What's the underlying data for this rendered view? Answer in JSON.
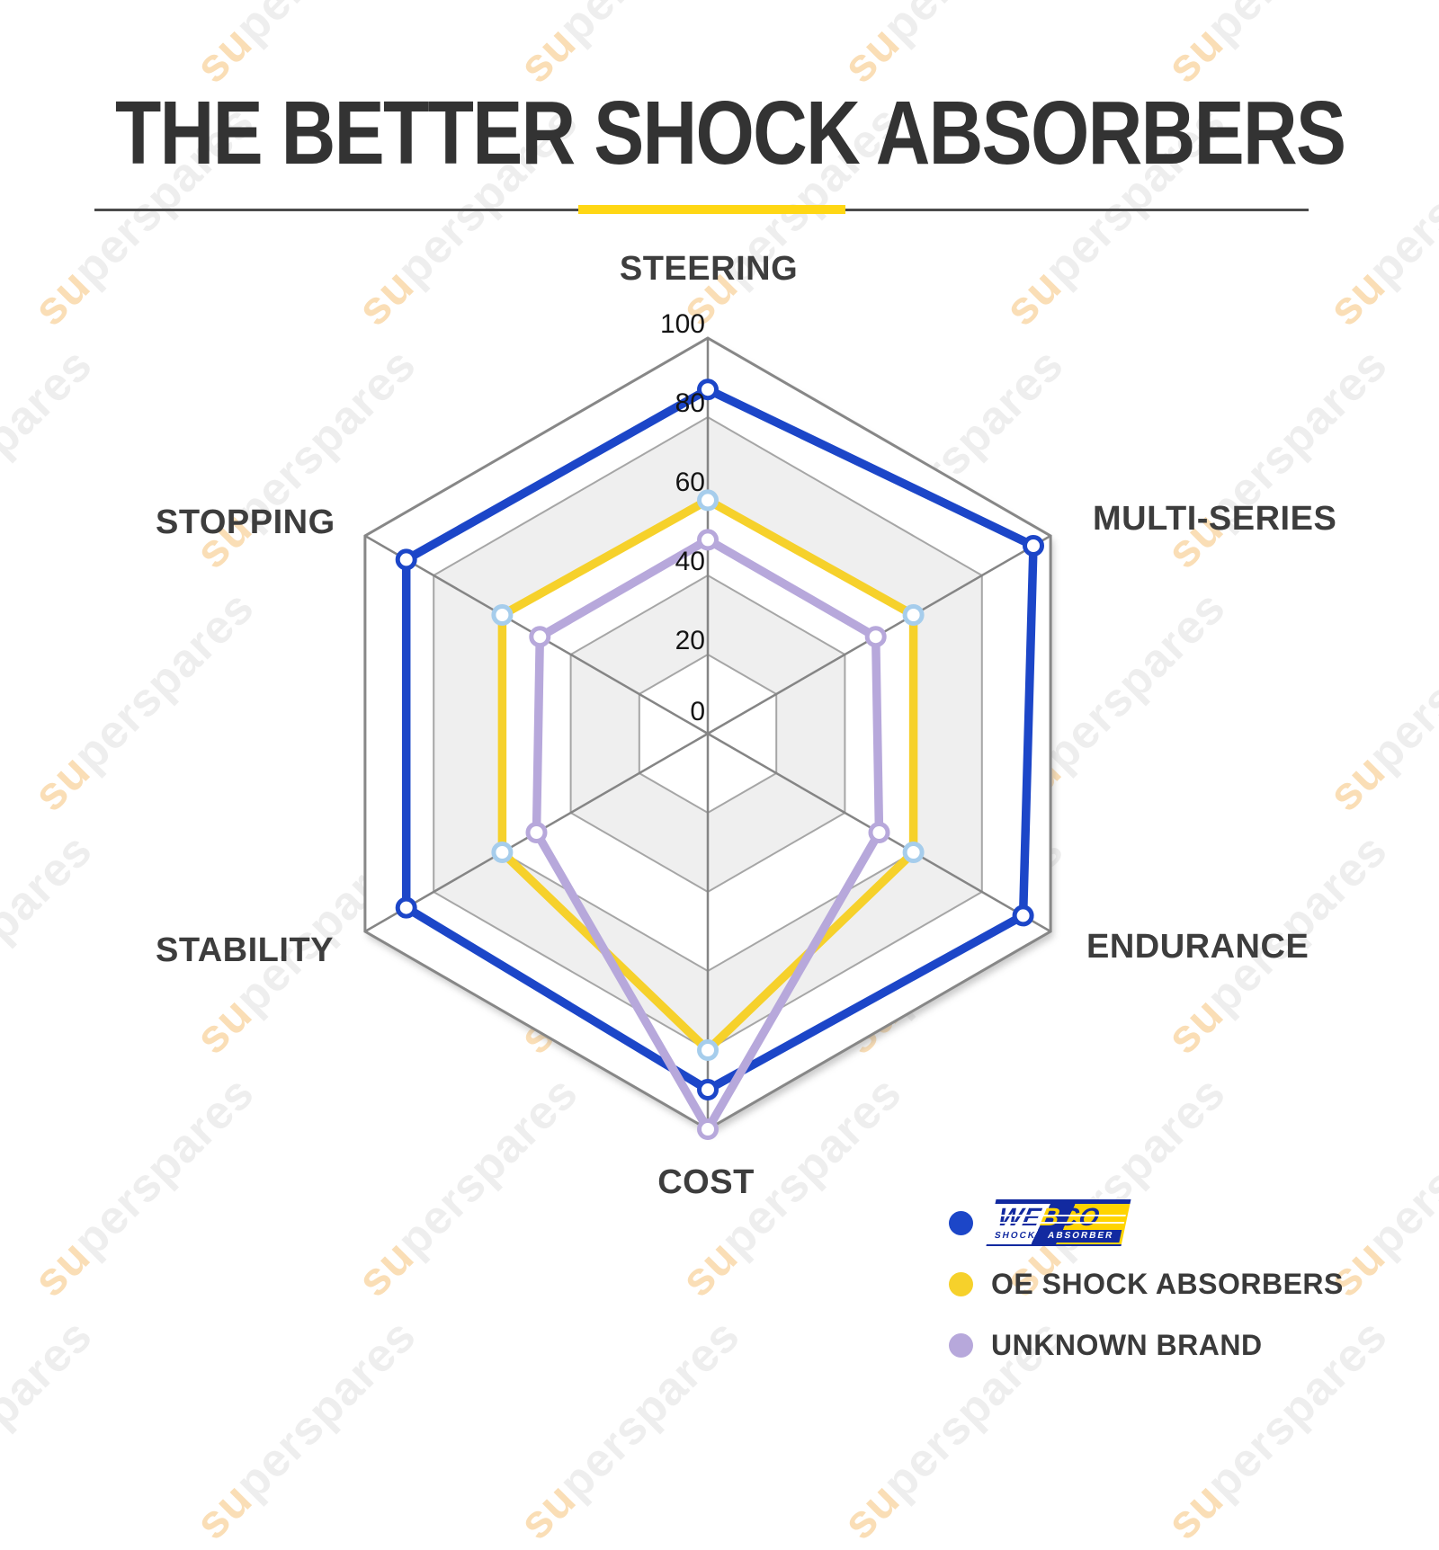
{
  "title": "THE BETTER SHOCK ABSORBERS",
  "watermark": "superspares",
  "palette": {
    "title_color": "#333333",
    "divider_line": "#4b4b4b",
    "divider_accent": "#FFD714",
    "label_color": "#3d3d3d",
    "webco_blue": "#122AA0",
    "webco_yellow": "#FFD400"
  },
  "legend": [
    {
      "label": "WEBCO",
      "sublabel": "SHOCK ABSORBER",
      "color": "#1C46C8"
    },
    {
      "label": "OE SHOCK ABSORBERS",
      "color": "#F6D12B"
    },
    {
      "label": "UNKNOWN BRAND",
      "color": "#B7A8DB"
    }
  ],
  "chart_data": {
    "type": "radar",
    "categories": [
      "STEERING",
      "MULTI-SERIES",
      "ENDURANCE",
      "COST",
      "STABILITY",
      "STOPPING"
    ],
    "ticks": [
      0,
      20,
      40,
      60,
      80,
      100
    ],
    "rlim": [
      0,
      100
    ],
    "grid": {
      "band_colors": [
        "#ffffff",
        "#efefef"
      ],
      "ring_line_color": "#a6a6a6",
      "outer_line_color": "#878787",
      "spoke_color": "#858585",
      "tick_color": "#141414"
    },
    "series": [
      {
        "name": "WEBCO",
        "color": "#1C46C8",
        "marker_color": "#1C46C8",
        "values": [
          87,
          95,
          92,
          90,
          88,
          88
        ]
      },
      {
        "name": "OE SHOCK ABSORBERS",
        "color": "#F6D12B",
        "marker_color": "#A6CDEC",
        "values": [
          59,
          60,
          60,
          80,
          60,
          60
        ]
      },
      {
        "name": "UNKNOWN BRAND",
        "color": "#B7A8DB",
        "marker_color": "#B7A8DB",
        "values": [
          49,
          49,
          50,
          100,
          50,
          49
        ]
      }
    ]
  }
}
